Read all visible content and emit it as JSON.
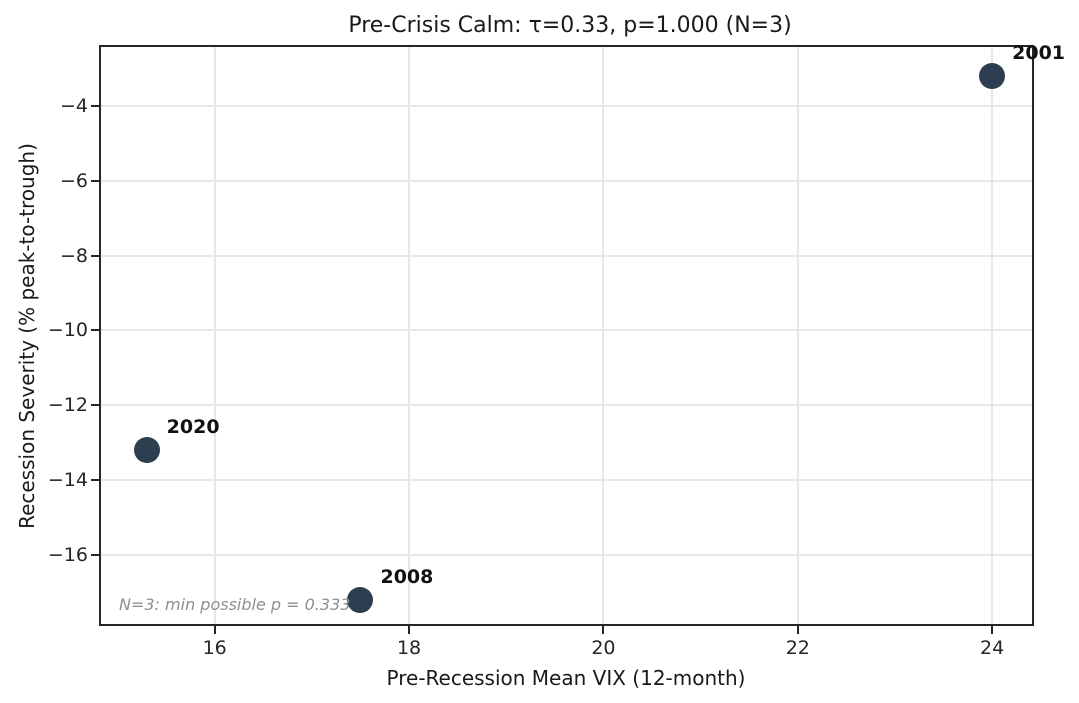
{
  "chart_data": {
    "type": "scatter",
    "title": "Pre-Crisis Calm: τ=0.33, p=1.000 (N=3)",
    "xlabel": "Pre-Recession Mean VIX (12-month)",
    "ylabel": "Recession Severity (% peak-to-trough)",
    "annotation": "N=3: min possible p = 0.333",
    "xlim": [
      14.83,
      24.41
    ],
    "ylim": [
      -17.85,
      -2.42
    ],
    "xticks": [
      16,
      18,
      20,
      22,
      24
    ],
    "xtick_labels": [
      "16",
      "18",
      "20",
      "22",
      "24"
    ],
    "yticks": [
      -4,
      -6,
      -8,
      -10,
      -12,
      -14,
      -16
    ],
    "ytick_labels": [
      "−4",
      "−6",
      "−8",
      "−10",
      "−12",
      "−14",
      "−16"
    ],
    "grid": true,
    "legend": "none",
    "marker_color": "#2d3e50",
    "annotation_color": "#8f8f8f",
    "points": [
      {
        "label": "2001",
        "x": 24.0,
        "y": -3.2
      },
      {
        "label": "2008",
        "x": 17.5,
        "y": -17.2
      },
      {
        "label": "2020",
        "x": 15.3,
        "y": -13.2
      }
    ]
  }
}
